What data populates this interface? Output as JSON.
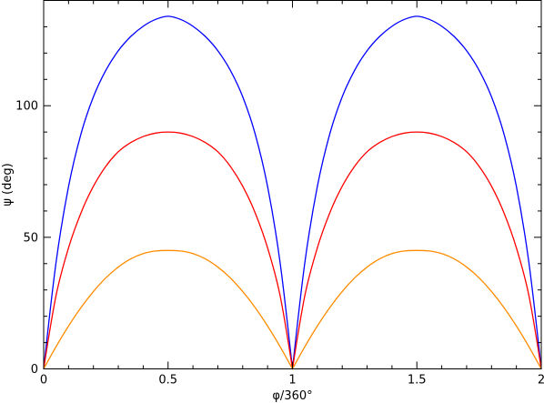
{
  "chart_data": {
    "type": "line",
    "xlabel": "φ/360°",
    "ylabel": "ψ (deg)",
    "xlim": [
      0,
      2
    ],
    "ylim": [
      0,
      140
    ],
    "grid": false,
    "x_ticks": [
      0,
      0.5,
      1,
      1.5,
      2
    ],
    "x_tick_labels": [
      "0",
      "0.5",
      "1",
      "1.5",
      "2"
    ],
    "y_ticks": [
      0,
      50,
      100
    ],
    "y_tick_labels": [
      "0",
      "50",
      "100"
    ],
    "x": [
      0,
      0.05,
      0.1,
      0.15,
      0.2,
      0.25,
      0.3,
      0.35,
      0.4,
      0.45,
      0.5,
      0.55,
      0.6,
      0.65,
      0.7,
      0.75,
      0.8,
      0.85,
      0.9,
      0.95,
      1.0,
      1.05,
      1.1,
      1.15,
      1.2,
      1.25,
      1.3,
      1.35,
      1.4,
      1.45,
      1.5,
      1.55,
      1.6,
      1.65,
      1.7,
      1.75,
      1.8,
      1.85,
      1.9,
      1.95,
      2.0
    ],
    "series": [
      {
        "color": "#0000ff",
        "values": [
          0,
          40.6,
          69.3,
          89.3,
          103.4,
          113.5,
          120.9,
          126.3,
          130.2,
          132.8,
          134,
          132.8,
          130.2,
          126.3,
          120.9,
          113.5,
          103.4,
          89.3,
          69.3,
          40.6,
          0,
          40.6,
          69.3,
          89.3,
          103.4,
          113.5,
          120.9,
          126.3,
          130.2,
          132.8,
          134,
          132.8,
          130.2,
          126.3,
          120.9,
          113.5,
          103.4,
          89.3,
          69.3,
          40.6,
          0
        ]
      },
      {
        "color": "#ff0000",
        "values": [
          0,
          28.0,
          46.0,
          59.3,
          69.4,
          77.0,
          82.5,
          86.0,
          88.3,
          89.6,
          90,
          89.6,
          88.3,
          86.0,
          82.5,
          77.0,
          69.4,
          59.3,
          46.0,
          28.0,
          0,
          28.0,
          46.0,
          59.3,
          69.4,
          77.0,
          82.5,
          86.0,
          88.3,
          89.6,
          90,
          89.6,
          88.3,
          86.0,
          82.5,
          77.0,
          69.4,
          59.3,
          46.0,
          28.0,
          0
        ]
      },
      {
        "color": "#ff8c00",
        "values": [
          0,
          8.5,
          16.3,
          23.3,
          29.4,
          34.6,
          38.7,
          41.8,
          43.8,
          44.8,
          45,
          44.8,
          43.8,
          41.8,
          38.7,
          34.6,
          29.4,
          23.3,
          16.3,
          8.5,
          0,
          8.5,
          16.3,
          23.3,
          29.4,
          34.6,
          38.7,
          41.8,
          43.8,
          44.8,
          45,
          44.8,
          43.8,
          41.8,
          38.7,
          34.6,
          29.4,
          23.3,
          16.3,
          8.5,
          0
        ]
      }
    ]
  }
}
